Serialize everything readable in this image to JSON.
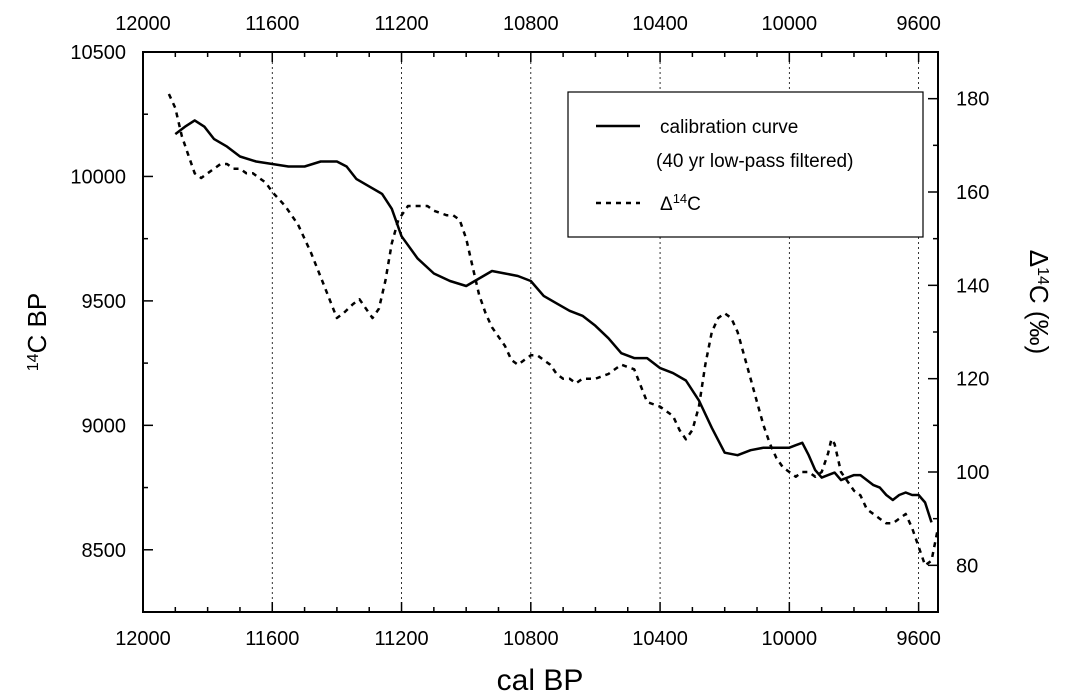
{
  "chart_data": {
    "type": "line",
    "xlabel": "cal BP",
    "ylabel_left": "14C BP",
    "ylabel_right": "Δ14C (‰)",
    "x_range": [
      12000,
      9540
    ],
    "x_reversed": true,
    "y_left_range": [
      8250,
      10500
    ],
    "y_right_range": [
      70,
      190
    ],
    "x_ticks": [
      12000,
      11600,
      11200,
      10800,
      10400,
      10000,
      9600
    ],
    "y_left_ticks": [
      8500,
      9000,
      9500,
      10000,
      10500
    ],
    "y_right_ticks": [
      80,
      100,
      120,
      140,
      160,
      180
    ],
    "vertical_gridlines": [
      11600,
      11200,
      10800,
      10400,
      10000,
      9600
    ],
    "legend": {
      "position": "top-right",
      "entries": [
        {
          "label": "calibration curve",
          "style": "solid"
        },
        {
          "label": "(40 yr low-pass filtered)",
          "style": "none"
        },
        {
          "label": "Δ14C",
          "style": "dotted"
        }
      ]
    },
    "series": [
      {
        "name": "calibration curve",
        "axis": "left",
        "style": "solid",
        "x": [
          11900,
          11870,
          11840,
          11810,
          11780,
          11740,
          11700,
          11650,
          11600,
          11550,
          11500,
          11450,
          11400,
          11370,
          11340,
          11300,
          11260,
          11230,
          11200,
          11150,
          11100,
          11050,
          11000,
          10960,
          10920,
          10880,
          10840,
          10800,
          10760,
          10720,
          10680,
          10640,
          10600,
          10560,
          10520,
          10480,
          10440,
          10400,
          10360,
          10320,
          10280,
          10240,
          10200,
          10160,
          10120,
          10080,
          10040,
          10000,
          9980,
          9960,
          9940,
          9920,
          9900,
          9880,
          9860,
          9840,
          9820,
          9800,
          9780,
          9760,
          9740,
          9720,
          9700,
          9680,
          9660,
          9640,
          9620,
          9600,
          9580,
          9560
        ],
        "y": [
          10170,
          10200,
          10225,
          10200,
          10150,
          10120,
          10080,
          10060,
          10050,
          10040,
          10040,
          10060,
          10060,
          10040,
          9990,
          9960,
          9930,
          9870,
          9760,
          9670,
          9610,
          9580,
          9560,
          9590,
          9620,
          9610,
          9600,
          9580,
          9520,
          9490,
          9460,
          9440,
          9400,
          9350,
          9290,
          9270,
          9270,
          9230,
          9210,
          9180,
          9100,
          8990,
          8890,
          8880,
          8900,
          8910,
          8910,
          8910,
          8920,
          8930,
          8880,
          8820,
          8790,
          8800,
          8810,
          8780,
          8790,
          8800,
          8800,
          8780,
          8760,
          8750,
          8720,
          8700,
          8720,
          8730,
          8720,
          8720,
          8690,
          8610
        ]
      },
      {
        "name": "Δ14C",
        "axis": "right",
        "style": "dotted",
        "x": [
          11920,
          11900,
          11880,
          11860,
          11840,
          11820,
          11800,
          11780,
          11760,
          11740,
          11720,
          11700,
          11680,
          11660,
          11640,
          11620,
          11600,
          11560,
          11520,
          11480,
          11440,
          11400,
          11380,
          11350,
          11330,
          11310,
          11290,
          11270,
          11250,
          11230,
          11210,
          11180,
          11150,
          11120,
          11100,
          11060,
          11040,
          11020,
          11000,
          10980,
          10960,
          10940,
          10920,
          10900,
          10880,
          10860,
          10840,
          10820,
          10800,
          10780,
          10760,
          10740,
          10720,
          10700,
          10680,
          10660,
          10640,
          10600,
          10560,
          10520,
          10480,
          10440,
          10400,
          10360,
          10340,
          10320,
          10300,
          10280,
          10260,
          10240,
          10220,
          10200,
          10180,
          10160,
          10140,
          10120,
          10100,
          10080,
          10060,
          10040,
          10020,
          10000,
          9980,
          9960,
          9940,
          9920,
          9900,
          9880,
          9870,
          9860,
          9840,
          9820,
          9800,
          9780,
          9760,
          9740,
          9720,
          9700,
          9680,
          9660,
          9640,
          9620,
          9600,
          9580,
          9560,
          9540
        ],
        "y": [
          181,
          178,
          172,
          168,
          164,
          163,
          164,
          165,
          166,
          166,
          165,
          165,
          164,
          164,
          163,
          162,
          160,
          157,
          153,
          147,
          140,
          133,
          134,
          136,
          137,
          135,
          133,
          135,
          141,
          149,
          154,
          157,
          157,
          157,
          156,
          155,
          155,
          154,
          150,
          144,
          138,
          134,
          131,
          129,
          127,
          124,
          123,
          124,
          125,
          125,
          124,
          123,
          121,
          120,
          120,
          119,
          120,
          120,
          121,
          123,
          122,
          115,
          114,
          112,
          109,
          107,
          109,
          114,
          123,
          130,
          133,
          134,
          133,
          130,
          125,
          120,
          115,
          110,
          106,
          103,
          101,
          100,
          99,
          100,
          100,
          99,
          100,
          104,
          107,
          106,
          100,
          98,
          96,
          95,
          92,
          91,
          90,
          89,
          89,
          90,
          91,
          88,
          84,
          80,
          81,
          88
        ]
      }
    ]
  }
}
